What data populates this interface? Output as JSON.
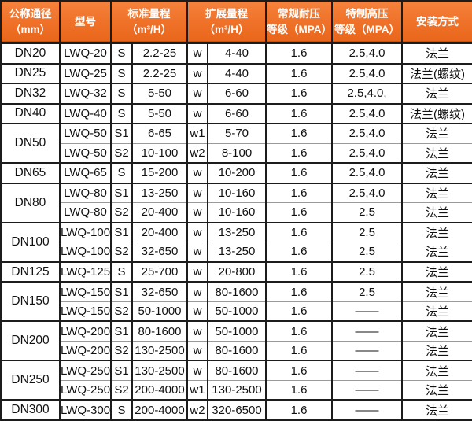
{
  "header": {
    "dn": {
      "line1": "公称通径",
      "line2": "（mm）"
    },
    "model": {
      "line1": "型号"
    },
    "std": {
      "line1": "标准量程",
      "line2": "（m³/H）"
    },
    "ext": {
      "line1": "扩展量程",
      "line2": "（m³/H）"
    },
    "normal": {
      "line1": "常规耐压",
      "line2": "等级（MPA）"
    },
    "high": {
      "line1": "特制高压",
      "line2": "等级（MPA）"
    },
    "install": {
      "line1": "安装方式"
    }
  },
  "rows": [
    {
      "dn": "DN20",
      "dn_rowspan": 1,
      "model": "LWQ-20",
      "std_code": "S",
      "std_range": "2.2-25",
      "ext_code": "w",
      "ext_range": "4-40",
      "normal_mpa": "1.6",
      "high_mpa": "2.5,4.0",
      "install": "法兰"
    },
    {
      "dn": "DN25",
      "dn_rowspan": 1,
      "model": "LWQ-25",
      "std_code": "S",
      "std_range": "2.2-25",
      "ext_code": "w",
      "ext_range": "4-40",
      "normal_mpa": "1.6",
      "high_mpa": "2.5,4.0",
      "install": "法兰(螺纹)"
    },
    {
      "dn": "DN32",
      "dn_rowspan": 1,
      "model": "LWQ-32",
      "std_code": "S",
      "std_range": "5-50",
      "ext_code": "w",
      "ext_range": "6-60",
      "normal_mpa": "1.6",
      "high_mpa": "2.5,4.0,",
      "install": "法兰"
    },
    {
      "dn": "DN40",
      "dn_rowspan": 1,
      "model": "LWQ-40",
      "std_code": "S",
      "std_range": "5-50",
      "ext_code": "w",
      "ext_range": "6-60",
      "normal_mpa": "1.6",
      "high_mpa": "2.5,4.0",
      "install": "法兰(螺纹)"
    },
    {
      "dn": "DN50",
      "dn_rowspan": 2,
      "model": "LWQ-50",
      "std_code": "S1",
      "std_range": "6-65",
      "ext_code": "w1",
      "ext_range": "5-70",
      "normal_mpa": "1.6",
      "high_mpa": "2.5,4.0",
      "install": "法兰"
    },
    {
      "dn": null,
      "model": "LWQ-50",
      "std_code": "S2",
      "std_range": "10-100",
      "ext_code": "w2",
      "ext_range": "8-100",
      "normal_mpa": "1.6",
      "high_mpa": "2.5,4.0",
      "install": "法兰"
    },
    {
      "dn": "DN65",
      "dn_rowspan": 1,
      "model": "LWQ-65",
      "std_code": "S",
      "std_range": "15-200",
      "ext_code": "w",
      "ext_range": "10-200",
      "normal_mpa": "1.6",
      "high_mpa": "2.5,4.0",
      "install": "法兰"
    },
    {
      "dn": "DN80",
      "dn_rowspan": 2,
      "model": "LWQ-80",
      "std_code": "S1",
      "std_range": "13-250",
      "ext_code": "w",
      "ext_range": "10-160",
      "normal_mpa": "1.6",
      "high_mpa": "2.5,4.0",
      "install": "法兰"
    },
    {
      "dn": null,
      "model": "LWQ-80",
      "std_code": "S2",
      "std_range": "20-400",
      "ext_code": "w",
      "ext_range": "10-160",
      "normal_mpa": "1.6",
      "high_mpa": "2.5",
      "install": "法兰"
    },
    {
      "dn": "DN100",
      "dn_rowspan": 2,
      "model": "LWQ-100",
      "std_code": "S1",
      "std_range": "20-400",
      "ext_code": "w",
      "ext_range": "13-250",
      "normal_mpa": "1.6",
      "high_mpa": "2.5",
      "install": "法兰"
    },
    {
      "dn": null,
      "model": "LWQ-100",
      "std_code": "S2",
      "std_range": "32-650",
      "ext_code": "w",
      "ext_range": "13-250",
      "normal_mpa": "1.6",
      "high_mpa": "2.5",
      "install": "法兰"
    },
    {
      "dn": "DN125",
      "dn_rowspan": 1,
      "model": "LWQ-125",
      "std_code": "S",
      "std_range": "25-700",
      "ext_code": "w",
      "ext_range": "20-800",
      "normal_mpa": "1.6",
      "high_mpa": "2.5",
      "install": "法兰"
    },
    {
      "dn": "DN150",
      "dn_rowspan": 2,
      "model": "LWQ-150",
      "std_code": "S1",
      "std_range": "32-650",
      "ext_code": "w",
      "ext_range": "80-1600",
      "normal_mpa": "1.6",
      "high_mpa": "2.5",
      "install": "法兰"
    },
    {
      "dn": null,
      "model": "LWQ-150",
      "std_code": "S2",
      "std_range": "50-1000",
      "ext_code": "w",
      "ext_range": "50-1000",
      "normal_mpa": "1.6",
      "high_mpa": "——",
      "install": "法兰"
    },
    {
      "dn": "DN200",
      "dn_rowspan": 2,
      "model": "LWQ-200",
      "std_code": "S1",
      "std_range": "80-1600",
      "ext_code": "w",
      "ext_range": "50-1000",
      "normal_mpa": "1.6",
      "high_mpa": "——",
      "install": "法兰"
    },
    {
      "dn": null,
      "model": "LWQ-200",
      "std_code": "S2",
      "std_range": "130-2500",
      "ext_code": "w",
      "ext_range": "80-1600",
      "normal_mpa": "1.6",
      "high_mpa": "——",
      "install": "法兰"
    },
    {
      "dn": "DN250",
      "dn_rowspan": 2,
      "model": "LWQ-250",
      "std_code": "S1",
      "std_range": "130-2500",
      "ext_code": "w",
      "ext_range": "80-1600",
      "normal_mpa": "1.6",
      "high_mpa": "——",
      "install": "法兰"
    },
    {
      "dn": null,
      "model": "LWQ-250",
      "std_code": "S2",
      "std_range": "200-4000",
      "ext_code": "w1",
      "ext_range": "130-2500",
      "normal_mpa": "1.6",
      "high_mpa": "——",
      "install": "法兰"
    },
    {
      "dn": "DN300",
      "dn_rowspan": 1,
      "model": "LWQ-300",
      "std_code": "S",
      "std_range": "200-4000",
      "ext_code": "w2",
      "ext_range": "320-6500",
      "normal_mpa": "1.6",
      "high_mpa": "——",
      "install": "法兰"
    }
  ],
  "colors": {
    "header_orange_top": "#f5823c",
    "header_orange_mid": "#ef7027",
    "header_orange_bottom": "#e8661b",
    "header_accent_dark": "#c6540f",
    "header_text": "#ffffff",
    "grid_dark": "#1c1c1c",
    "grid_light": "#9a9a9a",
    "body_text": "#111111",
    "body_background": "#ffffff"
  }
}
